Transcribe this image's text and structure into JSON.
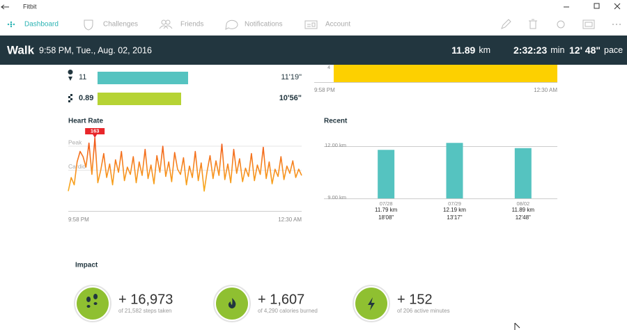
{
  "window": {
    "title": "Fitbit"
  },
  "nav": {
    "tabs": [
      "Dashboard",
      "Challenges",
      "Friends",
      "Notifications",
      "Account"
    ],
    "active": 0
  },
  "header": {
    "activity": "Walk",
    "datetime": "9:58 PM, Tue., Aug. 02, 2016",
    "distance": "11.89",
    "distance_unit": "km",
    "duration": "2:32:23",
    "duration_unit": "min",
    "pace": "12' 48\"",
    "pace_unit": "pace"
  },
  "splits": [
    {
      "distance": "11",
      "pace": "11'19\""
    },
    {
      "distance": "0.89",
      "pace": "10'56\""
    }
  ],
  "partial_chart": {
    "ytick": "4",
    "x_start": "9:58 PM",
    "x_end": "12:30 AM"
  },
  "heart_rate": {
    "title": "Heart Rate",
    "type": "line",
    "ylim": [
      95,
      165
    ],
    "zones": [
      {
        "label": "Peak",
        "value": 155
      },
      {
        "label": "Cardio",
        "value": 132
      }
    ],
    "peak_value": 163,
    "x_start": "9:58 PM",
    "x_end": "12:30 AM",
    "values": [
      112,
      125,
      118,
      140,
      150,
      145,
      135,
      158,
      128,
      163,
      120,
      132,
      148,
      125,
      138,
      118,
      142,
      130,
      150,
      122,
      135,
      128,
      145,
      120,
      140,
      127,
      152,
      124,
      137,
      119,
      146,
      130,
      155,
      126,
      140,
      121,
      149,
      133,
      128,
      144,
      118,
      136,
      125,
      150,
      122,
      139,
      112,
      131,
      146,
      124,
      141,
      127,
      157,
      123,
      138,
      120,
      152,
      129,
      143,
      121,
      134,
      126,
      148,
      122,
      137,
      128,
      154,
      124,
      140,
      119,
      133,
      126,
      145,
      123,
      136,
      129,
      141,
      125,
      133,
      127
    ]
  },
  "recent": {
    "title": "Recent",
    "type": "bar",
    "color": "#55c3c0",
    "categories": [
      "07/28",
      "07/29",
      "08/02"
    ],
    "values": [
      11.79,
      12.19,
      11.89
    ],
    "value_labels": [
      "11.79 km",
      "12.19 km",
      "11.89 km"
    ],
    "paces": [
      "18'08\"",
      "13'17\"",
      "12'48\""
    ],
    "ylim": [
      9,
      12.4
    ],
    "yticks": [
      {
        "value": 12,
        "label": "12.00 km"
      },
      {
        "value": 9,
        "label": "9.00 km"
      }
    ]
  },
  "impact": {
    "title": "Impact",
    "items": [
      {
        "value": "+ 16,973",
        "detail": "of 21,582 steps taken"
      },
      {
        "value": "+ 1,607",
        "detail": "of 4,290 calories burned"
      },
      {
        "value": "+ 152",
        "detail": "of 206 active minutes"
      }
    ]
  }
}
